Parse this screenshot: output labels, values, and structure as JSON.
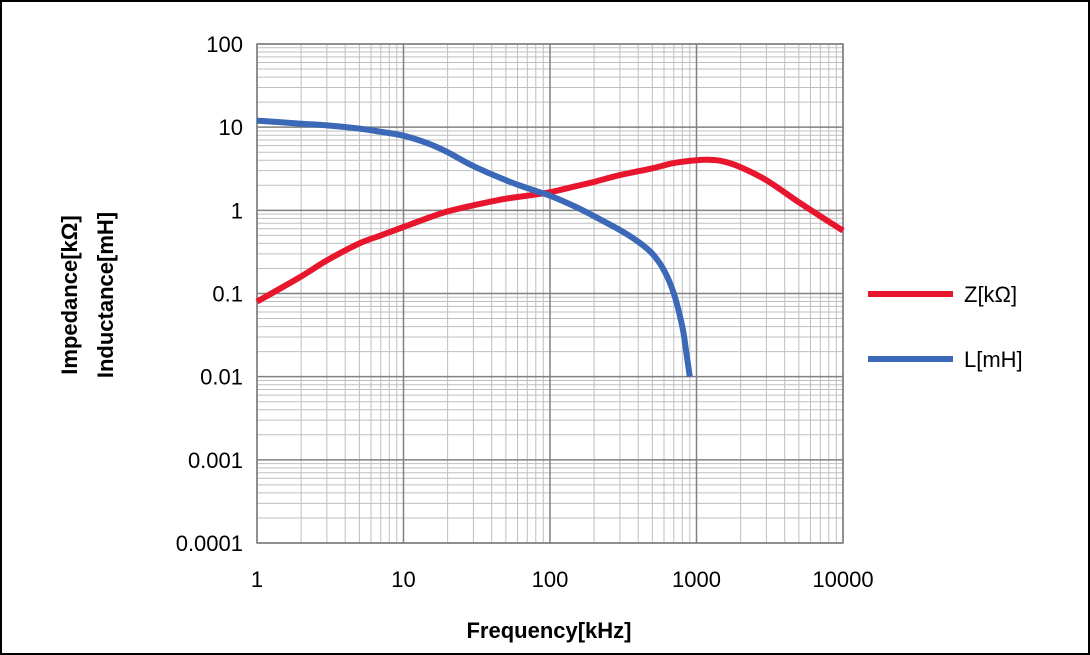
{
  "chart_data": {
    "type": "line",
    "title": "",
    "xlabel": "Frequency[kHz]",
    "ylabel_lines": [
      "Impedance[kΩ]",
      "Inductance[mH]"
    ],
    "x_scale": "log",
    "y_scale": "log",
    "xlim": [
      1,
      10000
    ],
    "ylim": [
      0.0001,
      100
    ],
    "x_ticks": [
      1,
      10,
      100,
      1000,
      10000
    ],
    "x_tick_labels": [
      "1",
      "10",
      "100",
      "1000",
      "10000"
    ],
    "y_ticks": [
      0.0001,
      0.001,
      0.01,
      0.1,
      1,
      10,
      100
    ],
    "y_tick_labels": [
      "0.0001",
      "0.001",
      "0.01",
      "0.1",
      "1",
      "10",
      "100"
    ],
    "grid": true,
    "legend_position": "right",
    "series": [
      {
        "name": "Z[kΩ]",
        "color": "#e8162d",
        "x": [
          1,
          2,
          3,
          5,
          7,
          10,
          15,
          20,
          30,
          50,
          70,
          100,
          150,
          200,
          300,
          500,
          700,
          1000,
          1200,
          1500,
          2000,
          3000,
          5000,
          7000,
          10000
        ],
        "y": [
          0.08,
          0.16,
          0.25,
          0.4,
          0.5,
          0.63,
          0.82,
          0.97,
          1.15,
          1.38,
          1.5,
          1.65,
          1.95,
          2.2,
          2.65,
          3.2,
          3.7,
          4.0,
          4.05,
          3.9,
          3.3,
          2.3,
          1.25,
          0.85,
          0.57
        ]
      },
      {
        "name": "L[mH]",
        "color": "#3b68b7",
        "x": [
          1,
          2,
          3,
          5,
          7,
          10,
          15,
          20,
          30,
          50,
          70,
          100,
          150,
          200,
          300,
          400,
          500,
          600,
          700,
          800,
          850,
          900
        ],
        "y": [
          12,
          11,
          10.5,
          9.6,
          8.8,
          7.9,
          6.3,
          5.0,
          3.4,
          2.3,
          1.85,
          1.5,
          1.1,
          0.85,
          0.58,
          0.42,
          0.3,
          0.19,
          0.1,
          0.04,
          0.02,
          0.01
        ]
      }
    ]
  }
}
